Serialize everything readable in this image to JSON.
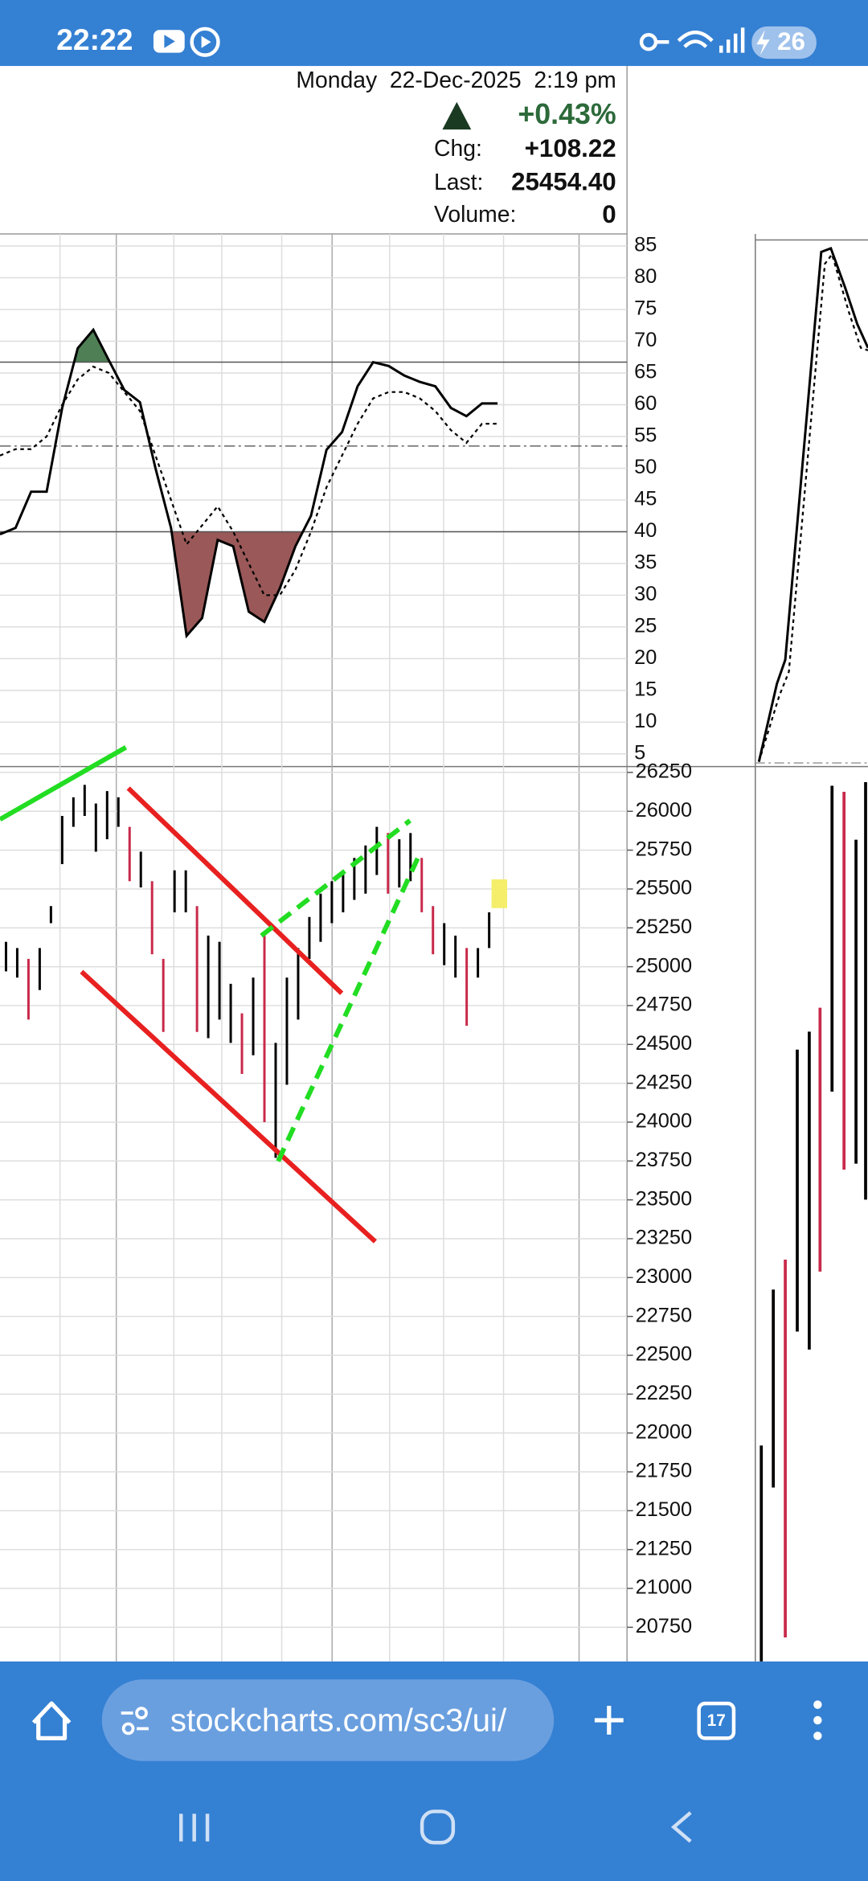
{
  "status_bar": {
    "time": "22:22",
    "battery": "26"
  },
  "quote": {
    "date": "Monday  22-Dec-2025  2:19 pm",
    "change_pct": "+0.43%",
    "chg_label": "Chg:",
    "chg": "+108.22",
    "last_label": "Last:",
    "last": "25454.40",
    "volume_label": "Volume:",
    "volume": "0"
  },
  "indicator": {
    "ylim": [
      3.2,
      86.9
    ],
    "yticks": [
      85,
      80,
      75,
      70,
      65,
      60,
      55,
      50,
      45,
      40,
      35,
      30,
      25,
      20,
      15,
      10,
      5
    ],
    "upper_level": 66.7,
    "lower_level": 40,
    "midline": 53.5,
    "line": [
      39.6,
      40.6,
      46.3,
      46.3,
      59.5,
      68.9,
      71.8,
      67,
      62.3,
      60.4,
      50,
      40.6,
      23.6,
      26.4,
      38.7,
      37.7,
      27.4,
      25.8,
      31.1,
      37.7,
      42.5,
      52.9,
      55.7,
      62.9,
      66.7,
      66.1,
      64.6,
      63.6,
      62.9,
      59.5,
      58.2,
      60.2,
      60.2
    ],
    "signal": [
      52,
      53,
      53,
      55,
      60,
      64,
      66,
      65,
      62,
      59,
      52,
      45,
      38,
      41,
      44,
      40,
      35,
      30,
      30,
      34,
      40,
      47,
      52,
      57,
      61,
      62,
      62,
      61,
      59,
      56,
      54,
      57,
      57
    ]
  },
  "price": {
    "ylim": [
      20530,
      26280
    ],
    "yticks": [
      26250,
      26000,
      25750,
      25500,
      25250,
      25000,
      24750,
      24500,
      24250,
      24000,
      23750,
      23500,
      23250,
      23000,
      22750,
      22500,
      22250,
      22000,
      21750,
      21500,
      21250,
      21000,
      20750
    ],
    "high": [
      25160,
      25120,
      25050,
      25120,
      25390,
      25970,
      26090,
      26170,
      26050,
      26130,
      26090,
      25900,
      25740,
      25550,
      25050,
      25620,
      25620,
      25390,
      25200,
      25160,
      24890,
      24700,
      24930,
      25200,
      24510,
      24930,
      25120,
      25320,
      25470,
      25550,
      25620,
      25700,
      25780,
      25900,
      25860,
      25820,
      25860,
      25700,
      25390,
      25280,
      25200,
      25120,
      25120,
      25350
    ],
    "low": [
      24970,
      24930,
      24660,
      24850,
      25280,
      25660,
      25900,
      25970,
      25740,
      25820,
      25900,
      25550,
      25510,
      25080,
      24580,
      25350,
      25350,
      24580,
      24540,
      24660,
      24510,
      24310,
      24430,
      24000,
      23770,
      24240,
      24660,
      25050,
      25160,
      25280,
      25350,
      25430,
      25470,
      25590,
      25470,
      25510,
      25550,
      25350,
      25080,
      25010,
      24930,
      24620,
      24930,
      25120
    ],
    "colors": [
      "#000",
      "#000",
      "#c8294a",
      "#000",
      "#000",
      "#000",
      "#000",
      "#000",
      "#000",
      "#000",
      "#000",
      "#c8294a",
      "#000",
      "#c8294a",
      "#c8294a",
      "#000",
      "#000",
      "#c8294a",
      "#000",
      "#000",
      "#000",
      "#c8294a",
      "#000",
      "#c8294a",
      "#000",
      "#000",
      "#000",
      "#000",
      "#000",
      "#000",
      "#000",
      "#000",
      "#000",
      "#000",
      "#c8294a",
      "#000",
      "#000",
      "#c8294a",
      "#c8294a",
      "#000",
      "#000",
      "#c8294a",
      "#000",
      "#000"
    ]
  },
  "browser": {
    "url": "stockcharts.com/sc3/ui/",
    "tabs": "17"
  }
}
